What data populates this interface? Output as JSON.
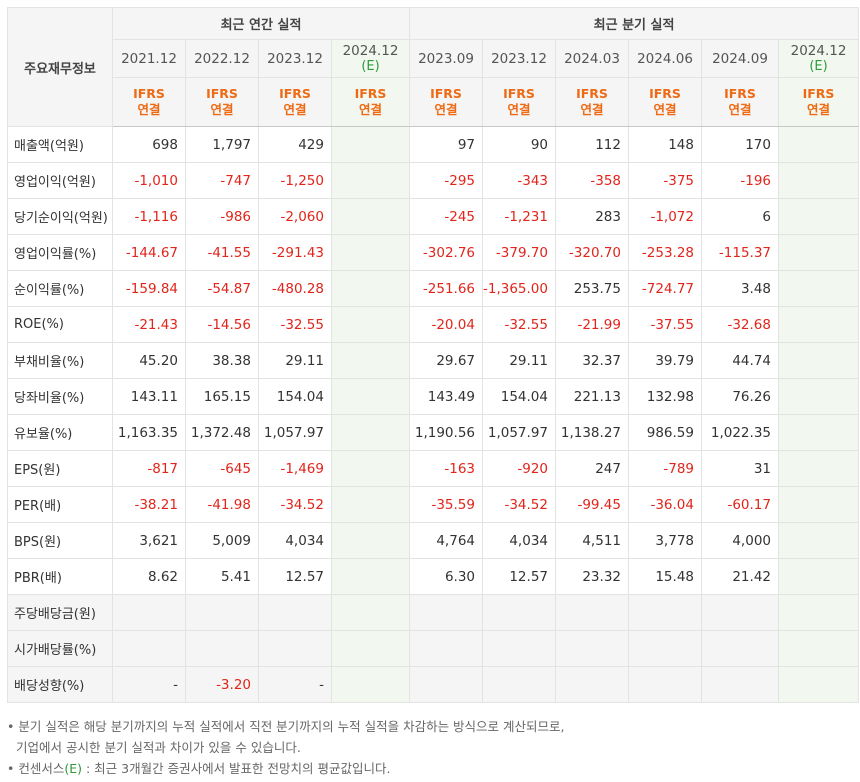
{
  "header": {
    "row_label": "주요재무정보",
    "annual_group": "최근 연간 실적",
    "quarter_group": "최근 분기 실적",
    "estimate_mark": "(E)",
    "accounting_top": "IFRS",
    "accounting_bottom": "연결"
  },
  "columns": [
    {
      "period": "2021.12",
      "estimate": false
    },
    {
      "period": "2022.12",
      "estimate": false
    },
    {
      "period": "2023.12",
      "estimate": false
    },
    {
      "period": "2024.12",
      "estimate": true
    },
    {
      "period": "2023.09",
      "estimate": false
    },
    {
      "period": "2023.12",
      "estimate": false
    },
    {
      "period": "2024.03",
      "estimate": false
    },
    {
      "period": "2024.06",
      "estimate": false
    },
    {
      "period": "2024.09",
      "estimate": false
    },
    {
      "period": "2024.12",
      "estimate": true
    }
  ],
  "rows": [
    {
      "label": "매출액(억원)",
      "values": [
        "698",
        "1,797",
        "429",
        "",
        "97",
        "90",
        "112",
        "148",
        "170",
        ""
      ]
    },
    {
      "label": "영업이익(억원)",
      "values": [
        "-1,010",
        "-747",
        "-1,250",
        "",
        "-295",
        "-343",
        "-358",
        "-375",
        "-196",
        ""
      ]
    },
    {
      "label": "당기순이익(억원)",
      "values": [
        "-1,116",
        "-986",
        "-2,060",
        "",
        "-245",
        "-1,231",
        "283",
        "-1,072",
        "6",
        ""
      ]
    },
    {
      "label": "영업이익률(%)",
      "values": [
        "-144.67",
        "-41.55",
        "-291.43",
        "",
        "-302.76",
        "-379.70",
        "-320.70",
        "-253.28",
        "-115.37",
        ""
      ]
    },
    {
      "label": "순이익률(%)",
      "values": [
        "-159.84",
        "-54.87",
        "-480.28",
        "",
        "-251.66",
        "-1,365.00",
        "253.75",
        "-724.77",
        "3.48",
        ""
      ]
    },
    {
      "label": "ROE(%)",
      "values": [
        "-21.43",
        "-14.56",
        "-32.55",
        "",
        "-20.04",
        "-32.55",
        "-21.99",
        "-37.55",
        "-32.68",
        ""
      ]
    },
    {
      "label": "부채비율(%)",
      "values": [
        "45.20",
        "38.38",
        "29.11",
        "",
        "29.67",
        "29.11",
        "32.37",
        "39.79",
        "44.74",
        ""
      ]
    },
    {
      "label": "당좌비율(%)",
      "values": [
        "143.11",
        "165.15",
        "154.04",
        "",
        "143.49",
        "154.04",
        "221.13",
        "132.98",
        "76.26",
        ""
      ]
    },
    {
      "label": "유보율(%)",
      "values": [
        "1,163.35",
        "1,372.48",
        "1,057.97",
        "",
        "1,190.56",
        "1,057.97",
        "1,138.27",
        "986.59",
        "1,022.35",
        ""
      ]
    },
    {
      "label": "EPS(원)",
      "values": [
        "-817",
        "-645",
        "-1,469",
        "",
        "-163",
        "-920",
        "247",
        "-789",
        "31",
        ""
      ]
    },
    {
      "label": "PER(배)",
      "values": [
        "-38.21",
        "-41.98",
        "-34.52",
        "",
        "-35.59",
        "-34.52",
        "-99.45",
        "-36.04",
        "-60.17",
        ""
      ]
    },
    {
      "label": "BPS(원)",
      "values": [
        "3,621",
        "5,009",
        "4,034",
        "",
        "4,764",
        "4,034",
        "4,511",
        "3,778",
        "4,000",
        ""
      ]
    },
    {
      "label": "PBR(배)",
      "values": [
        "8.62",
        "5.41",
        "12.57",
        "",
        "6.30",
        "12.57",
        "23.32",
        "15.48",
        "21.42",
        ""
      ]
    },
    {
      "label": "주당배당금(원)",
      "values": [
        "",
        "",
        "",
        "",
        "",
        "",
        "",
        "",
        "",
        ""
      ]
    },
    {
      "label": "시가배당률(%)",
      "values": [
        "",
        "",
        "",
        "",
        "",
        "",
        "",
        "",
        "",
        ""
      ]
    },
    {
      "label": "배당성향(%)",
      "values": [
        "-",
        "-3.20",
        "-",
        "",
        "",
        "",
        "",
        "",
        "",
        ""
      ]
    }
  ],
  "notes": {
    "line1": "• 분기 실적은 해당 분기까지의 누적 실적에서 직전 분기까지의 누적 실적을 차감하는 방식으로 계산되므로,",
    "line2": "기업에서 공시한 분기 실적과 차이가 있을 수 있습니다.",
    "line3_prefix": "• 컨센서스",
    "line3_mark": "(E)",
    "line3_suffix": " : 최근 3개월간 증권사에서 발표한 전망치의 평균값입니다."
  },
  "colors": {
    "negative": "#e1251b",
    "accounting": "#ee6a14",
    "estimate_mark": "#2e9b3a",
    "estimate_bg": "#f2f8ef"
  }
}
